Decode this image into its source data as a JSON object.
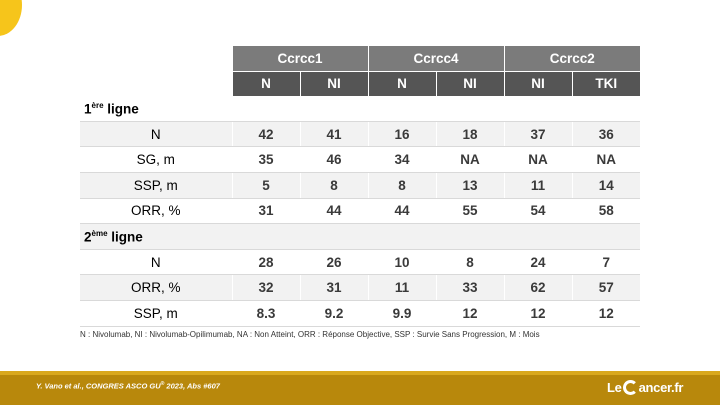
{
  "table": {
    "groups": [
      "Ccrcc1",
      "Ccrcc4",
      "Ccrcc2"
    ],
    "subheaders": [
      "N",
      "NI",
      "N",
      "NI",
      "NI",
      "TKI"
    ],
    "section1": {
      "prefix": "1",
      "sup": "ère",
      "suffix": " ligne"
    },
    "section2": {
      "prefix": "2",
      "sup": "ème",
      "suffix": " ligne"
    },
    "rows1": [
      {
        "label": "N",
        "values": [
          "42",
          "41",
          "16",
          "18",
          "37",
          "36"
        ]
      },
      {
        "label": "SG, m",
        "values": [
          "35",
          "46",
          "34",
          "NA",
          "NA",
          "NA"
        ]
      },
      {
        "label": "SSP, m",
        "values": [
          "5",
          "8",
          "8",
          "13",
          "11",
          "14"
        ]
      },
      {
        "label": "ORR, %",
        "values": [
          "31",
          "44",
          "44",
          "55",
          "54",
          "58"
        ]
      }
    ],
    "rows2": [
      {
        "label": "N",
        "values": [
          "28",
          "26",
          "10",
          "8",
          "24",
          "7"
        ]
      },
      {
        "label": "ORR, %",
        "values": [
          "32",
          "31",
          "11",
          "33",
          "62",
          "57"
        ]
      },
      {
        "label": "SSP, m",
        "values": [
          "8.3",
          "9.2",
          "9.9",
          "12",
          "12",
          "12"
        ]
      }
    ]
  },
  "footnote": "N : Nivolumab, NI : Nivolumab-Opilimumab, NA : Non Atteint, ORR : Réponse Objective, SSP : Survie Sans Progression, M : Mois",
  "citation": {
    "text": "Y. Vano et al., CONGRES ASCO GU",
    "sup": "®",
    "suffix": " 2023, Abs #607"
  },
  "logo": {
    "left": "Le",
    "right": "ancer.fr"
  },
  "colors": {
    "accent_yellow": "#f6c51b",
    "footer_gold": "#b8880c",
    "header_dark": "#555555",
    "header_mid": "#7b7b7b"
  }
}
